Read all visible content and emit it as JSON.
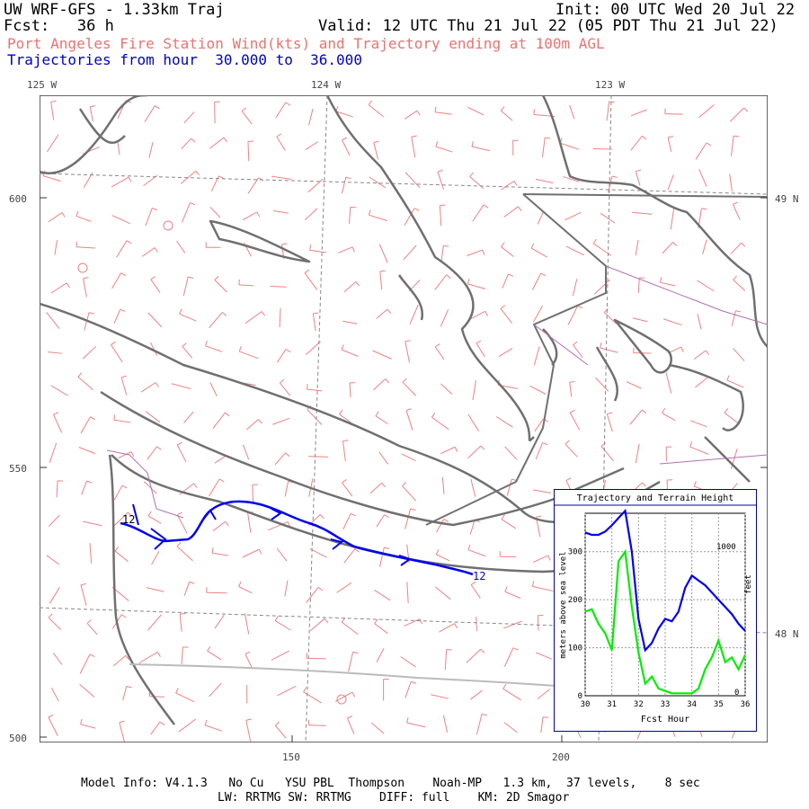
{
  "header": {
    "model_title": "UW WRF-GFS - 1.33km Traj",
    "init": "Init: 00 UTC Wed 20 Jul 22",
    "fcst": "Fcst:   36 h",
    "valid": "Valid: 12 UTC Thu 21 Jul 22 (05 PDT Thu 21 Jul 22)",
    "product": "Port Angeles Fire Station Wind(kts) and Trajectory ending at 100m AGL",
    "traj_range": "Trajectories from hour  30.000 to  36.000"
  },
  "colors": {
    "product_text": "#f07070",
    "traj_text": "#0000cc",
    "coast": "#707070",
    "border": "#b070b0",
    "barb": "#f08080",
    "trajectory": "#0000ee",
    "terrain": "#00ee00",
    "grid": "#888888"
  },
  "map": {
    "lon_labels": [
      "125 W",
      "124 W",
      "123 W"
    ],
    "lat_labels": [
      "49 N",
      "48 N"
    ],
    "y_ticks": [
      "600",
      "550",
      "500"
    ],
    "x_ticks": [
      "150",
      "200"
    ],
    "traj_start_label": "12",
    "traj_end_label": "12"
  },
  "inset": {
    "title": "Trajectory and Terrain Height",
    "ylabel_left": "meters above sea level",
    "ylabel_right": "feet",
    "xlabel": "Fcst Hour",
    "x_ticks": [
      "30",
      "31",
      "32",
      "33",
      "34",
      "35",
      "36"
    ],
    "y_left_ticks": [
      "0",
      "100",
      "200",
      "300"
    ],
    "y_right_ticks": [
      "0",
      "1000"
    ]
  },
  "chart_data": {
    "type": "line",
    "title": "Trajectory and Terrain Height",
    "xlabel": "Fcst Hour",
    "ylabel": "meters above sea level",
    "xlim": [
      30,
      36
    ],
    "ylim": [
      0,
      380
    ],
    "series": [
      {
        "color": "#0000ee",
        "x": [
          30,
          30.25,
          30.5,
          30.75,
          31,
          31.25,
          31.5,
          31.75,
          32,
          32.25,
          32.5,
          32.75,
          33,
          33.25,
          33.5,
          33.75,
          34,
          34.25,
          34.5,
          34.75,
          35,
          35.25,
          35.5,
          35.75,
          36
        ],
        "values": [
          340,
          335,
          335,
          342,
          355,
          370,
          385,
          300,
          160,
          95,
          110,
          140,
          160,
          155,
          175,
          225,
          250,
          240,
          230,
          215,
          200,
          185,
          170,
          150,
          135
        ]
      },
      {
        "color": "#00ee00",
        "x": [
          30,
          30.25,
          30.5,
          30.75,
          31,
          31.25,
          31.5,
          31.75,
          32,
          32.25,
          32.5,
          32.75,
          33,
          33.25,
          33.5,
          33.75,
          34,
          34.25,
          34.5,
          34.75,
          35,
          35.25,
          35.5,
          35.75,
          36
        ],
        "values": [
          175,
          180,
          150,
          130,
          95,
          280,
          300,
          185,
          90,
          25,
          40,
          15,
          10,
          5,
          5,
          5,
          5,
          15,
          55,
          80,
          115,
          70,
          80,
          55,
          85
        ]
      }
    ]
  },
  "footer": {
    "line1": "Model Info: V4.1.3   No Cu   YSU PBL  Thompson    Noah-MP   1.3 km,  37 levels,    8 sec",
    "line2": "LW: RRTMG SW: RRTMG    DIFF: full    KM: 2D Smagor"
  }
}
